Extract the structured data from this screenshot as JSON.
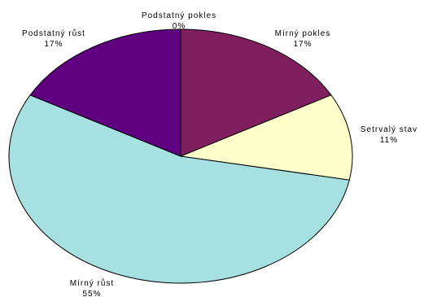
{
  "chart_data": {
    "type": "pie",
    "title": "",
    "slices": [
      {
        "label": "Podstatný pokles",
        "value": 0,
        "value_label": "0%",
        "color": "#ffffff"
      },
      {
        "label": "Mírný pokles",
        "value": 17,
        "value_label": "17%",
        "color": "#7f1f5f"
      },
      {
        "label": "Setrvalý stav",
        "value": 11,
        "value_label": "11%",
        "color": "#ffffcc"
      },
      {
        "label": "Mírný růst",
        "value": 55,
        "value_label": "55%",
        "color": "#a6e0e0"
      },
      {
        "label": "Podstatný růst",
        "value": 17,
        "value_label": "17%",
        "color": "#5f0080"
      }
    ],
    "start": "top",
    "direction": "clockwise",
    "legend": "none"
  }
}
